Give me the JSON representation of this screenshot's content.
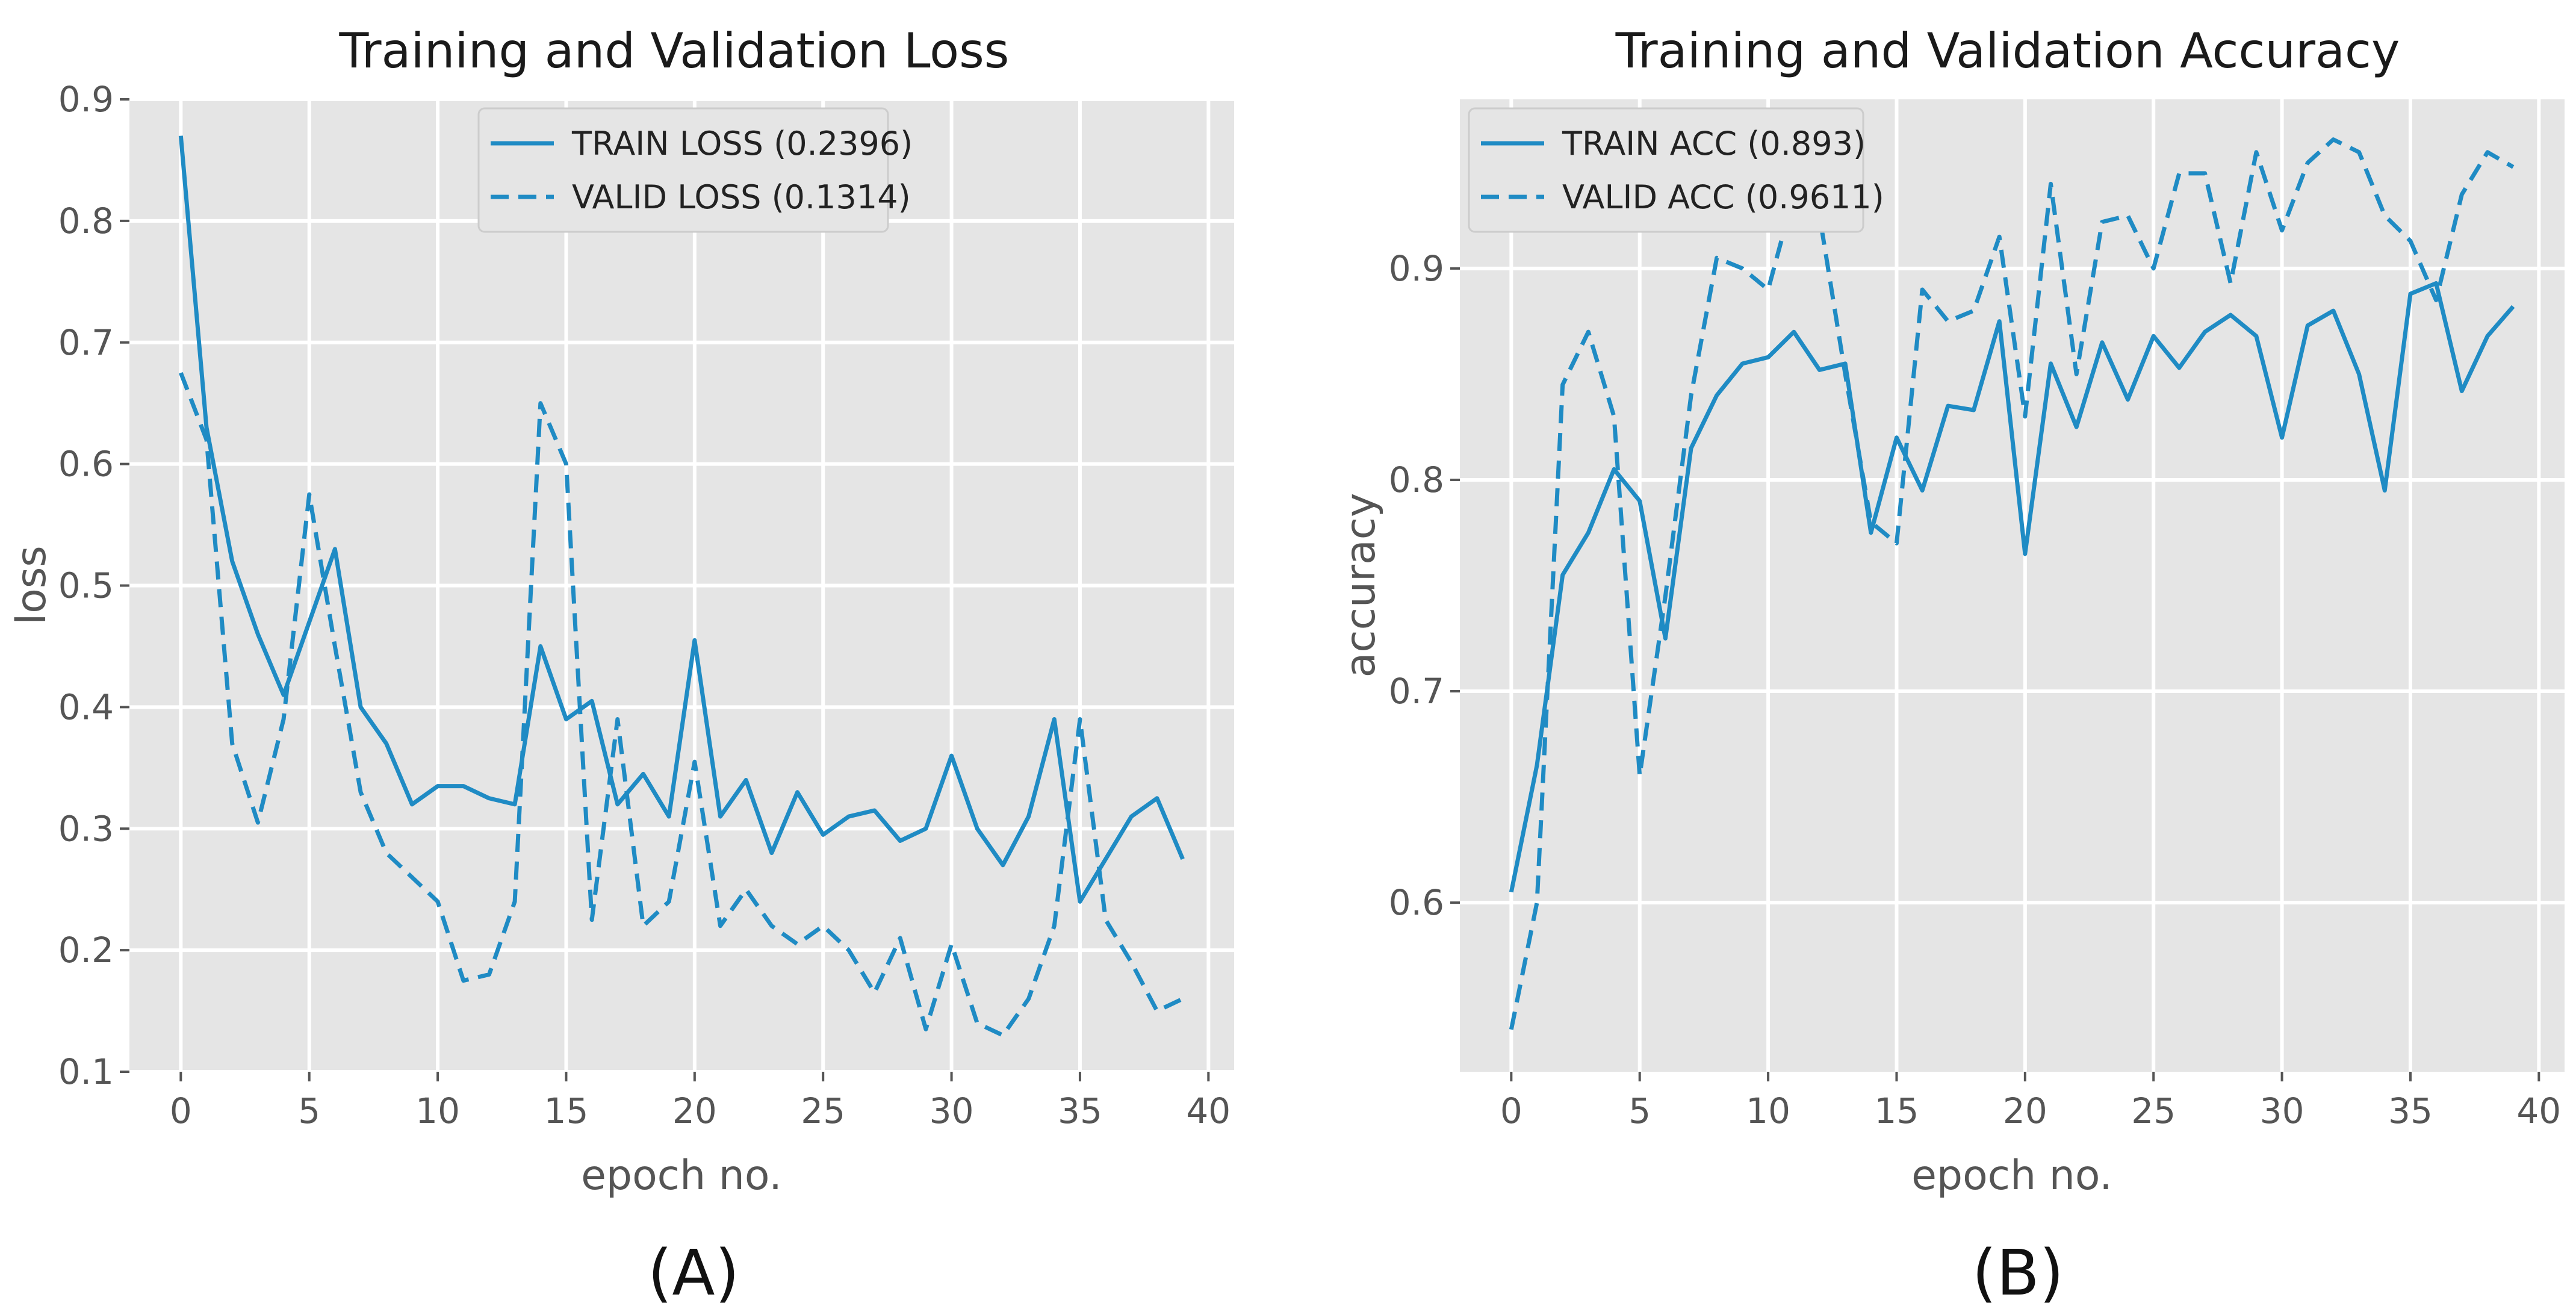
{
  "chart_data": [
    {
      "type": "line",
      "panel": "A",
      "caption": "(A)",
      "title": "Training and Validation Loss",
      "xlabel": "epoch no.",
      "ylabel": "loss",
      "xlim": [
        -2,
        41
      ],
      "ylim": [
        0.1,
        0.9
      ],
      "xticks": [
        0,
        5,
        10,
        15,
        20,
        25,
        30,
        35,
        40
      ],
      "yticks": [
        0.1,
        0.2,
        0.3,
        0.4,
        0.5,
        0.6,
        0.7,
        0.8,
        0.9
      ],
      "ytick_labels": [
        "0.1",
        "0.2",
        "0.3",
        "0.4",
        "0.5",
        "0.6",
        "0.7",
        "0.8",
        "0.9"
      ],
      "grid": true,
      "legend_position": "top-center",
      "color": "#1f8bc4",
      "x": [
        0,
        1,
        2,
        3,
        4,
        5,
        6,
        7,
        8,
        9,
        10,
        11,
        12,
        13,
        14,
        15,
        16,
        17,
        18,
        19,
        20,
        21,
        22,
        23,
        24,
        25,
        26,
        27,
        28,
        29,
        30,
        31,
        32,
        33,
        34,
        35,
        36,
        37,
        38,
        39
      ],
      "series": [
        {
          "name": "TRAIN LOSS (0.2396)",
          "style": "solid",
          "values": [
            0.87,
            0.63,
            0.52,
            0.46,
            0.41,
            0.47,
            0.53,
            0.4,
            0.37,
            0.32,
            0.335,
            0.335,
            0.325,
            0.32,
            0.45,
            0.39,
            0.405,
            0.32,
            0.345,
            0.31,
            0.455,
            0.31,
            0.34,
            0.28,
            0.33,
            0.295,
            0.31,
            0.315,
            0.29,
            0.3,
            0.36,
            0.3,
            0.27,
            0.31,
            0.39,
            0.24,
            0.275,
            0.31,
            0.325,
            0.275
          ]
        },
        {
          "name": "VALID LOSS (0.1314)",
          "style": "dashed",
          "values": [
            0.675,
            0.62,
            0.37,
            0.305,
            0.39,
            0.575,
            0.45,
            0.33,
            0.28,
            0.26,
            0.24,
            0.175,
            0.18,
            0.24,
            0.65,
            0.6,
            0.225,
            0.39,
            0.22,
            0.24,
            0.355,
            0.22,
            0.25,
            0.22,
            0.205,
            0.22,
            0.2,
            0.165,
            0.21,
            0.135,
            0.205,
            0.14,
            0.13,
            0.16,
            0.22,
            0.39,
            0.225,
            0.19,
            0.15,
            0.16
          ]
        }
      ]
    },
    {
      "type": "line",
      "panel": "B",
      "caption": "(B)",
      "title": "Training and Validation Accuracy",
      "xlabel": "epoch no.",
      "ylabel": "accuracy",
      "xlim": [
        -2,
        41
      ],
      "ylim": [
        0.52,
        0.98
      ],
      "xticks": [
        0,
        5,
        10,
        15,
        20,
        25,
        30,
        35,
        40
      ],
      "yticks": [
        0.6,
        0.7,
        0.8,
        0.9
      ],
      "ytick_labels": [
        "0.6",
        "0.7",
        "0.8",
        "0.9"
      ],
      "grid": true,
      "legend_position": "top-left",
      "color": "#1f8bc4",
      "x": [
        0,
        1,
        2,
        3,
        4,
        5,
        6,
        7,
        8,
        9,
        10,
        11,
        12,
        13,
        14,
        15,
        16,
        17,
        18,
        19,
        20,
        21,
        22,
        23,
        24,
        25,
        26,
        27,
        28,
        29,
        30,
        31,
        32,
        33,
        34,
        35,
        36,
        37,
        38,
        39
      ],
      "series": [
        {
          "name": "TRAIN ACC (0.893)",
          "style": "solid",
          "values": [
            0.605,
            0.665,
            0.755,
            0.775,
            0.805,
            0.79,
            0.725,
            0.815,
            0.84,
            0.855,
            0.858,
            0.87,
            0.852,
            0.855,
            0.775,
            0.82,
            0.795,
            0.835,
            0.833,
            0.875,
            0.765,
            0.855,
            0.825,
            0.865,
            0.838,
            0.868,
            0.853,
            0.87,
            0.878,
            0.868,
            0.82,
            0.873,
            0.88,
            0.85,
            0.795,
            0.888,
            0.893,
            0.842,
            0.868,
            0.882
          ]
        },
        {
          "name": "VALID ACC (0.9611)",
          "style": "dashed",
          "values": [
            0.54,
            0.6,
            0.845,
            0.87,
            0.83,
            0.66,
            0.745,
            0.84,
            0.905,
            0.9,
            0.89,
            0.935,
            0.925,
            0.85,
            0.78,
            0.77,
            0.89,
            0.875,
            0.88,
            0.915,
            0.83,
            0.94,
            0.85,
            0.922,
            0.925,
            0.9,
            0.945,
            0.945,
            0.893,
            0.955,
            0.918,
            0.95,
            0.961,
            0.955,
            0.925,
            0.913,
            0.885,
            0.935,
            0.955,
            0.948
          ]
        }
      ]
    }
  ]
}
